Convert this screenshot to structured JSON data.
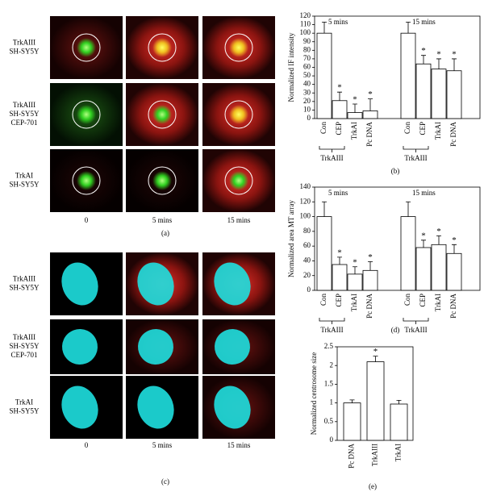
{
  "panel_a": {
    "rows": [
      [
        "TrkAIII",
        "SH-SY5Y"
      ],
      [
        "TrkAIII",
        "SH-SY5Y",
        "CEP-701"
      ],
      [
        "TrkAI",
        "SH-SY5Y"
      ]
    ],
    "cols": [
      "0",
      "5 mins",
      "15 mins"
    ],
    "label": "(a)"
  },
  "panel_c": {
    "rows": [
      [
        "TrkAIII",
        "SH-SY5Y"
      ],
      [
        "TrkAIII",
        "SH-SY5Y",
        "CEP-701"
      ],
      [
        "TrkAI",
        "SH-SY5Y"
      ]
    ],
    "cols": [
      "0",
      "5 mins",
      "15 mins"
    ],
    "label": "(c)"
  },
  "chart_data": [
    {
      "type": "bar",
      "panel_label": "(b)",
      "y_label": "Normalized IF intensity",
      "ylim": [
        0,
        120
      ],
      "yticks": [
        0,
        10,
        20,
        30,
        40,
        50,
        60,
        70,
        80,
        90,
        100,
        110,
        120
      ],
      "color": "#ffffff",
      "marker": "*",
      "groups": [
        {
          "name": "5 mins",
          "categories": [
            "Con",
            "CEP",
            "TrkAI",
            "Pc DNA"
          ],
          "values": [
            100,
            21,
            7,
            9
          ],
          "errors": [
            13,
            10,
            10,
            14
          ],
          "significant": [
            false,
            true,
            true,
            true
          ],
          "bracket_label": "TrkAIII"
        },
        {
          "name": "15 mins",
          "categories": [
            "Con",
            "CEP",
            "TrkAI",
            "Pc DNA"
          ],
          "values": [
            100,
            64,
            58,
            56
          ],
          "errors": [
            13,
            10,
            12,
            14
          ],
          "significant": [
            false,
            true,
            true,
            true
          ],
          "bracket_label": "TrkAIII"
        }
      ]
    },
    {
      "type": "bar",
      "panel_label": "(d)",
      "y_label": "Normalized area MT array",
      "ylim": [
        0,
        140
      ],
      "yticks": [
        0,
        20,
        40,
        60,
        80,
        100,
        120,
        140
      ],
      "color": "#ffffff",
      "marker": "*",
      "groups": [
        {
          "name": "5 mins",
          "categories": [
            "Con",
            "CEP",
            "TrkAI",
            "Pc DNA"
          ],
          "values": [
            100,
            35,
            22,
            27
          ],
          "errors": [
            20,
            10,
            10,
            12
          ],
          "significant": [
            false,
            true,
            true,
            true
          ],
          "bracket_label": "TrkAIII"
        },
        {
          "name": "15 mins",
          "categories": [
            "Con",
            "CEP",
            "TrkAI",
            "Pc DNA"
          ],
          "values": [
            100,
            58,
            62,
            50
          ],
          "errors": [
            20,
            10,
            12,
            12
          ],
          "significant": [
            false,
            true,
            true,
            true
          ],
          "bracket_label": "TrkAIII"
        }
      ]
    },
    {
      "type": "bar",
      "panel_label": "(e)",
      "y_label": "Normalized centrosome size",
      "ylim": [
        0,
        2.5
      ],
      "yticks": [
        0,
        0.5,
        1,
        1.5,
        2,
        2.5
      ],
      "color": "#ffffff",
      "marker": "*",
      "groups": [
        {
          "categories": [
            "Pc DNA",
            "TrkAIII",
            "TrkAI"
          ],
          "values": [
            1.0,
            2.1,
            0.97
          ],
          "errors": [
            0.08,
            0.15,
            0.1
          ],
          "significant": [
            false,
            true,
            false
          ]
        }
      ]
    }
  ]
}
